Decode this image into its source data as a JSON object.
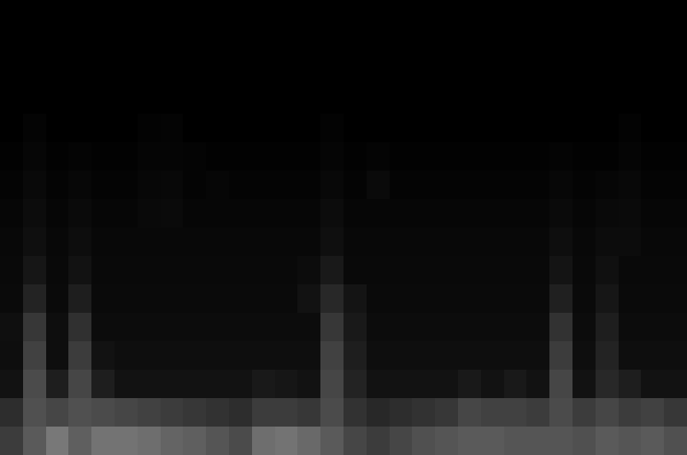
{
  "chart_data": {
    "type": "heatmap",
    "tick_labels": false,
    "color": "#ffffff",
    "color_range": [
      0,
      255
    ],
    "cells": [
      [
        0,
        0,
        0,
        0,
        0,
        0,
        0,
        0,
        0,
        0,
        0,
        0,
        0,
        0,
        0,
        0,
        0,
        0,
        0,
        0,
        0,
        0,
        0,
        0,
        0,
        0,
        0,
        0,
        0,
        0
      ],
      [
        0,
        0,
        0,
        0,
        0,
        0,
        0,
        0,
        0,
        0,
        0,
        0,
        0,
        0,
        0,
        0,
        0,
        0,
        0,
        0,
        0,
        0,
        0,
        0,
        0,
        0,
        0,
        0,
        0,
        0
      ],
      [
        0,
        0,
        0,
        0,
        0,
        0,
        0,
        0,
        0,
        0,
        0,
        0,
        0,
        0,
        0,
        0,
        0,
        0,
        0,
        0,
        0,
        0,
        0,
        0,
        0,
        0,
        0,
        0,
        0,
        0
      ],
      [
        0,
        0,
        0,
        0,
        0,
        0,
        0,
        0,
        0,
        0,
        0,
        0,
        0,
        0,
        0,
        0,
        0,
        0,
        0,
        0,
        0,
        0,
        0,
        0,
        0,
        0,
        0,
        0,
        0,
        0
      ],
      [
        0,
        4,
        0,
        0,
        0,
        0,
        3,
        4,
        0,
        0,
        0,
        0,
        0,
        0,
        3,
        0,
        0,
        0,
        0,
        0,
        0,
        0,
        0,
        0,
        0,
        0,
        0,
        3,
        0,
        0
      ],
      [
        2,
        6,
        2,
        4,
        2,
        2,
        5,
        5,
        4,
        2,
        2,
        2,
        2,
        2,
        5,
        2,
        4,
        2,
        2,
        2,
        2,
        2,
        2,
        2,
        4,
        2,
        2,
        5,
        2,
        2
      ],
      [
        4,
        9,
        4,
        7,
        4,
        4,
        7,
        8,
        4,
        6,
        4,
        4,
        4,
        4,
        8,
        4,
        10,
        4,
        4,
        4,
        4,
        4,
        4,
        4,
        7,
        4,
        6,
        8,
        4,
        4
      ],
      [
        6,
        12,
        6,
        10,
        6,
        6,
        9,
        10,
        6,
        6,
        6,
        6,
        6,
        6,
        12,
        6,
        6,
        6,
        6,
        6,
        6,
        6,
        6,
        6,
        10,
        6,
        9,
        10,
        6,
        6
      ],
      [
        8,
        15,
        8,
        13,
        8,
        8,
        8,
        8,
        8,
        8,
        8,
        8,
        8,
        8,
        15,
        8,
        8,
        8,
        8,
        8,
        8,
        8,
        8,
        8,
        14,
        8,
        12,
        12,
        8,
        8
      ],
      [
        9,
        22,
        9,
        18,
        9,
        9,
        9,
        9,
        9,
        9,
        9,
        9,
        9,
        12,
        25,
        9,
        9,
        9,
        9,
        9,
        9,
        9,
        9,
        9,
        20,
        9,
        16,
        9,
        9,
        9
      ],
      [
        10,
        35,
        10,
        30,
        10,
        10,
        10,
        10,
        10,
        10,
        10,
        10,
        10,
        18,
        40,
        20,
        10,
        10,
        10,
        10,
        10,
        10,
        10,
        10,
        32,
        10,
        22,
        10,
        10,
        10
      ],
      [
        15,
        55,
        14,
        48,
        12,
        12,
        12,
        12,
        12,
        12,
        12,
        12,
        12,
        12,
        55,
        25,
        12,
        12,
        12,
        12,
        12,
        12,
        12,
        12,
        50,
        12,
        30,
        12,
        12,
        12
      ],
      [
        14,
        65,
        14,
        60,
        18,
        14,
        14,
        14,
        14,
        14,
        14,
        14,
        14,
        14,
        65,
        30,
        14,
        14,
        14,
        14,
        14,
        14,
        14,
        14,
        60,
        14,
        35,
        14,
        14,
        14
      ],
      [
        18,
        75,
        30,
        70,
        30,
        18,
        18,
        18,
        18,
        18,
        18,
        25,
        22,
        18,
        70,
        35,
        18,
        18,
        18,
        18,
        25,
        18,
        25,
        18,
        70,
        18,
        40,
        30,
        18,
        18
      ],
      [
        45,
        80,
        70,
        80,
        75,
        70,
        65,
        60,
        55,
        50,
        45,
        60,
        60,
        55,
        75,
        50,
        40,
        45,
        50,
        55,
        70,
        65,
        65,
        60,
        75,
        60,
        70,
        60,
        65,
        55
      ],
      [
        60,
        90,
        120,
        95,
        115,
        115,
        110,
        100,
        95,
        85,
        75,
        110,
        115,
        105,
        90,
        70,
        60,
        70,
        80,
        85,
        90,
        90,
        85,
        85,
        85,
        80,
        90,
        85,
        90,
        80
      ]
    ]
  }
}
